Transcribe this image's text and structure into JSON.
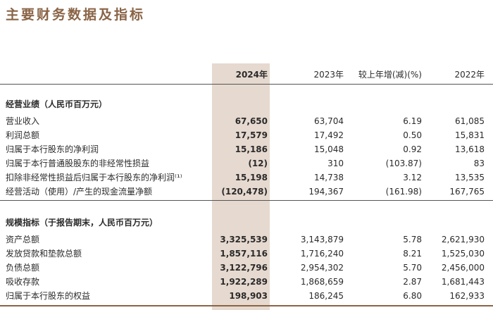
{
  "title": "主要财务数据及指标",
  "columns": [
    "2024年",
    "2023年",
    "较上年增(减)(%)",
    "2022年"
  ],
  "section1": {
    "heading": "经营业绩（人民币百万元）",
    "rows": [
      {
        "label": "营业收入",
        "v2024": "67,650",
        "v2023": "63,704",
        "change": "6.19",
        "v2022": "61,085"
      },
      {
        "label": "利润总额",
        "v2024": "17,579",
        "v2023": "17,492",
        "change": "0.50",
        "v2022": "15,831"
      },
      {
        "label": "归属于本行股东的净利润",
        "v2024": "15,186",
        "v2023": "15,048",
        "change": "0.92",
        "v2022": "13,618"
      },
      {
        "label": "归属于本行普通股股东的非经常性损益",
        "v2024": "(12)",
        "v2023": "310",
        "change": "(103.87)",
        "v2022": "83"
      },
      {
        "label": "扣除非经常性损益后归属于本行股东的净利润⁽¹⁾",
        "v2024": "15,198",
        "v2023": "14,738",
        "change": "3.12",
        "v2022": "13,535"
      },
      {
        "label": "经营活动（使用）/产生的现金流量净额",
        "v2024": "(120,478)",
        "v2023": "194,367",
        "change": "(161.98)",
        "v2022": "167,765"
      }
    ]
  },
  "section2": {
    "heading": "规模指标（于报告期末，人民币百万元）",
    "rows": [
      {
        "label": "资产总额",
        "v2024": "3,325,539",
        "v2023": "3,143,879",
        "change": "5.78",
        "v2022": "2,621,930"
      },
      {
        "label": "发放贷款和垫款总额",
        "v2024": "1,857,116",
        "v2023": "1,716,240",
        "change": "8.21",
        "v2022": "1,525,030"
      },
      {
        "label": "负债总额",
        "v2024": "3,122,796",
        "v2023": "2,954,302",
        "change": "5.70",
        "v2022": "2,456,000"
      },
      {
        "label": "吸收存款",
        "v2024": "1,922,289",
        "v2023": "1,868,659",
        "change": "2.87",
        "v2022": "1,681,443"
      },
      {
        "label": "归属于本行股东的权益",
        "v2024": "198,903",
        "v2023": "186,245",
        "change": "6.80",
        "v2022": "162,933"
      }
    ]
  }
}
